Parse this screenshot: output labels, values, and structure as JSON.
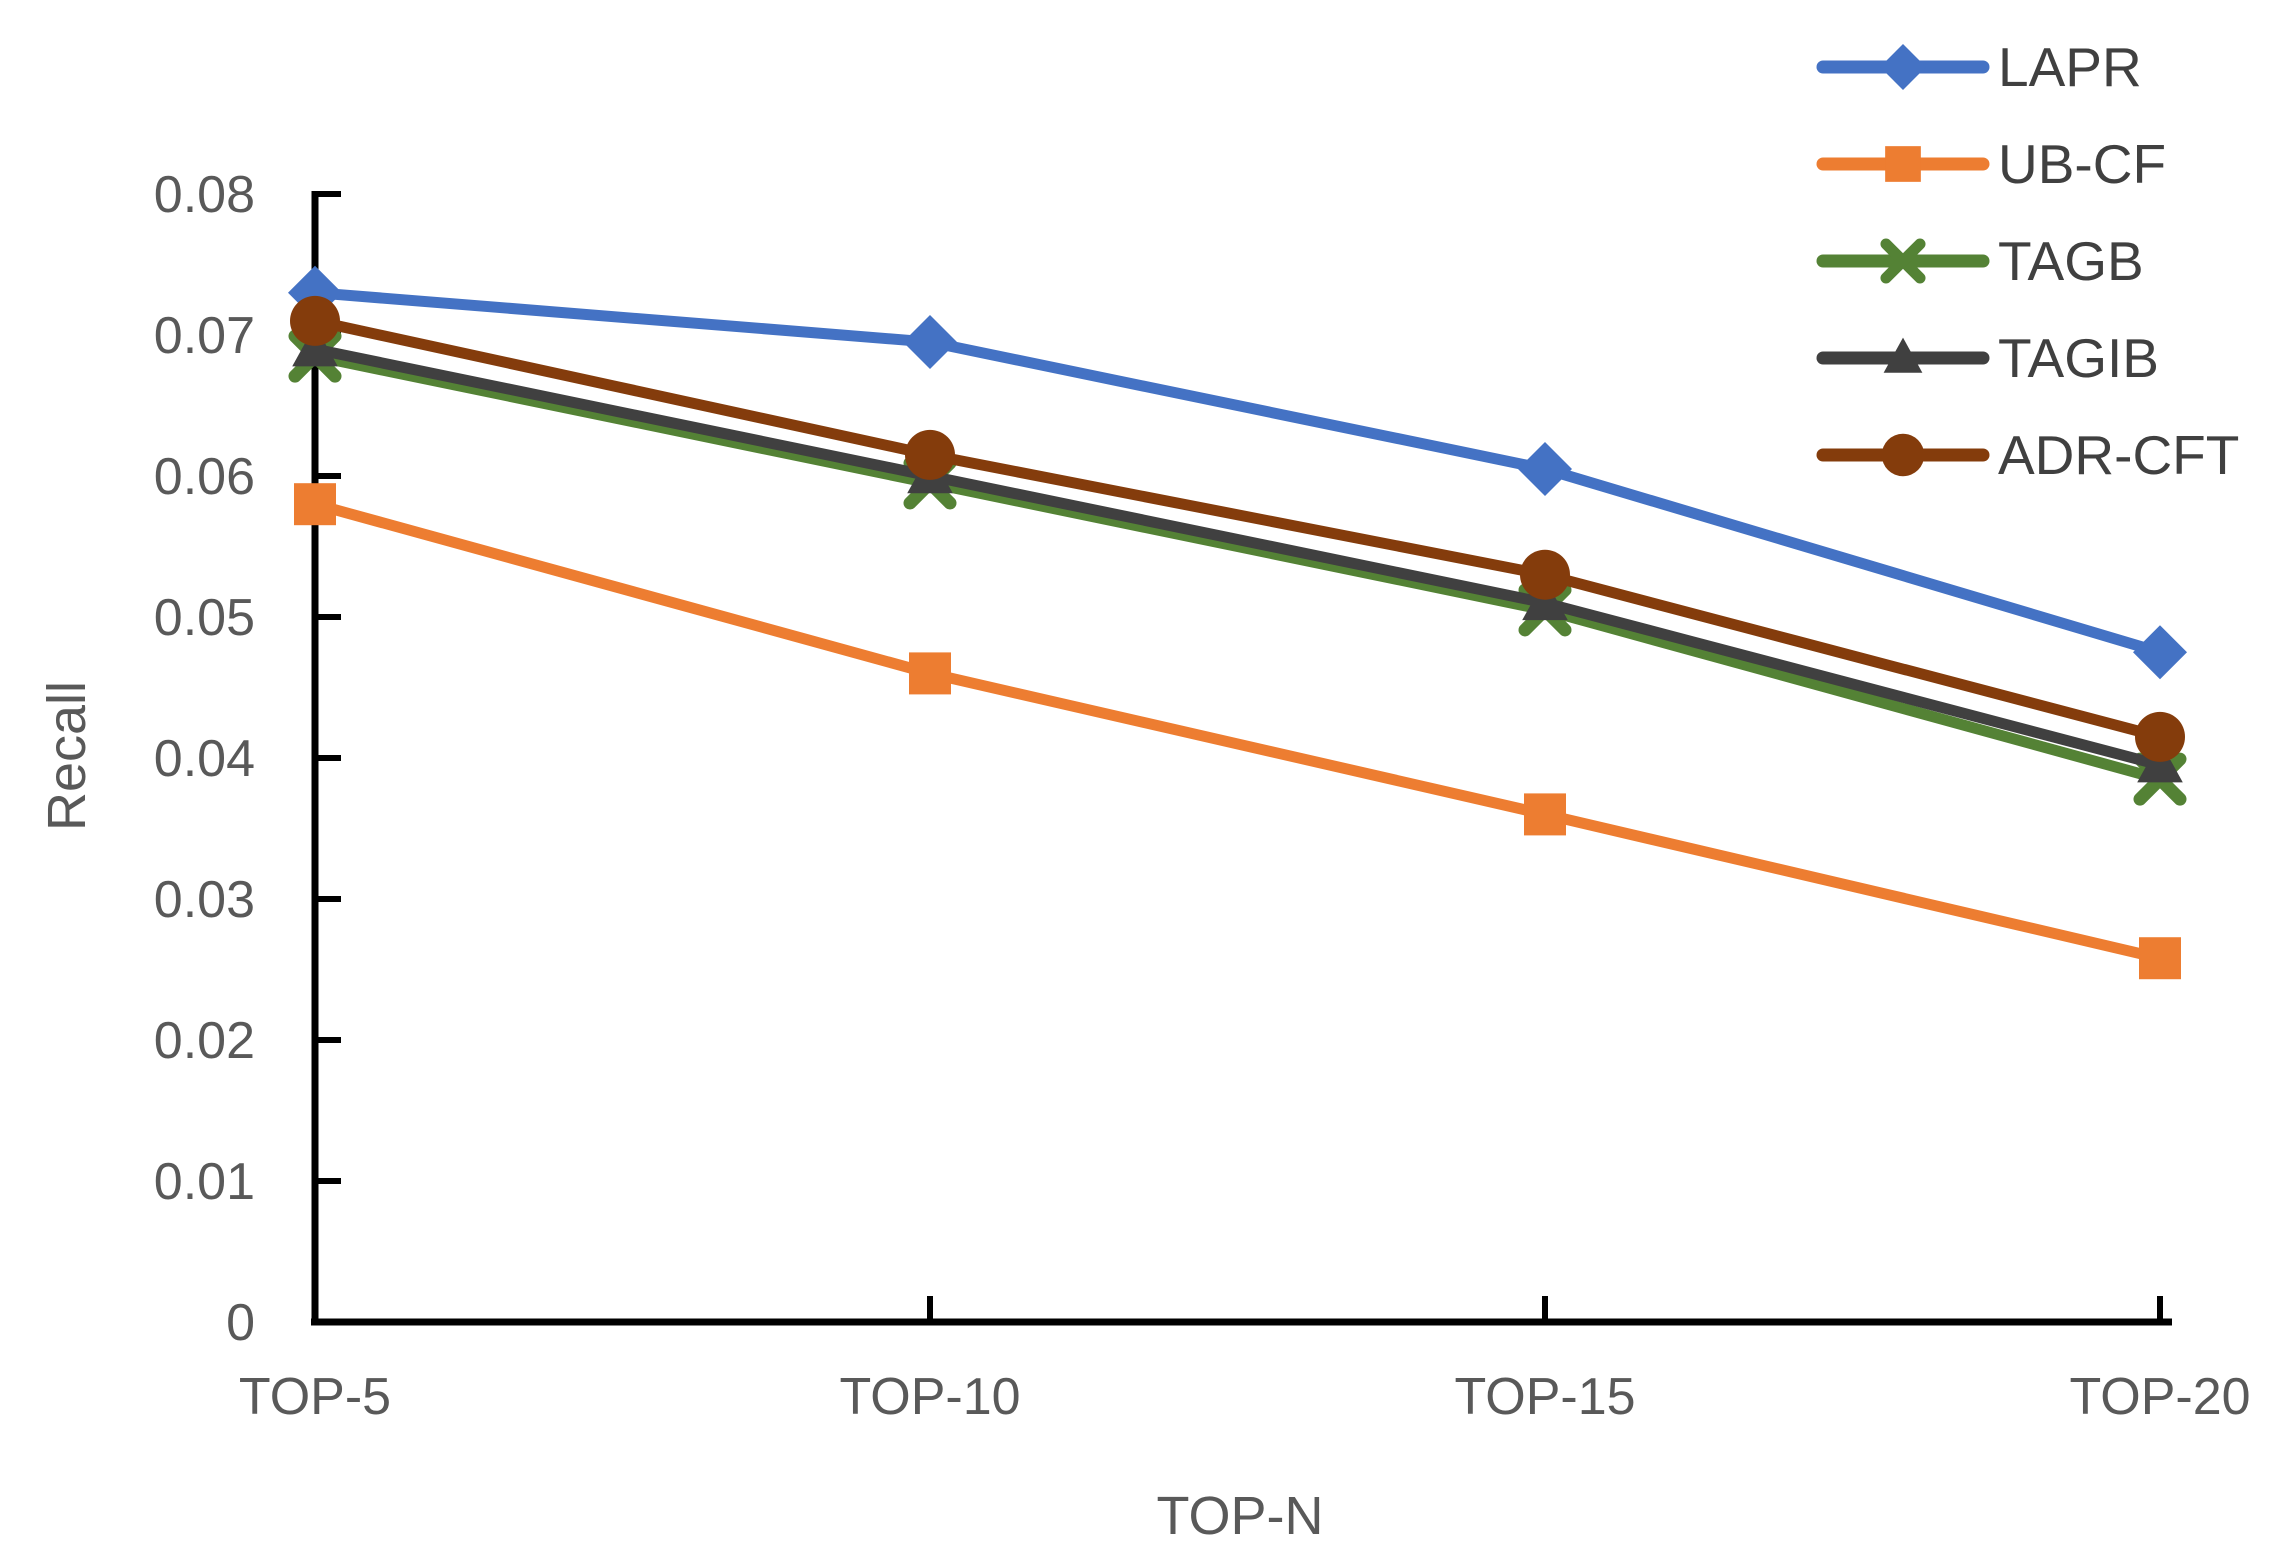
{
  "chart_data": {
    "type": "line",
    "title": "",
    "xlabel": "TOP-N",
    "ylabel": "Recall",
    "categories": [
      "TOP-5",
      "TOP-10",
      "TOP-15",
      "TOP-20"
    ],
    "series": [
      {
        "name": "LAPR",
        "color": "#4472C4",
        "marker": "diamond",
        "values": [
          0.073,
          0.0695,
          0.0605,
          0.0475
        ]
      },
      {
        "name": "UB-CF",
        "color": "#ED7D31",
        "marker": "square",
        "values": [
          0.058,
          0.046,
          0.036,
          0.0258
        ]
      },
      {
        "name": "TAGB",
        "color": "#548235",
        "marker": "x",
        "values": [
          0.0685,
          0.0595,
          0.0505,
          0.0385
        ]
      },
      {
        "name": "TAGIB",
        "color": "#404040",
        "marker": "triangle-up",
        "values": [
          0.069,
          0.06,
          0.051,
          0.0395
        ]
      },
      {
        "name": "ADR-CFT",
        "color": "#843C0C",
        "marker": "circle",
        "values": [
          0.071,
          0.0615,
          0.053,
          0.0415
        ]
      }
    ],
    "ylim": [
      0,
      0.08
    ],
    "ytick_labels": [
      "0",
      "0.01",
      "0.02",
      "0.03",
      "0.04",
      "0.05",
      "0.06",
      "0.07",
      "0.08"
    ],
    "grid": false,
    "legend_position": "top-right",
    "axis_color": "#000000",
    "tick_label_color": "#595959",
    "legend_text_color": "#404040"
  }
}
